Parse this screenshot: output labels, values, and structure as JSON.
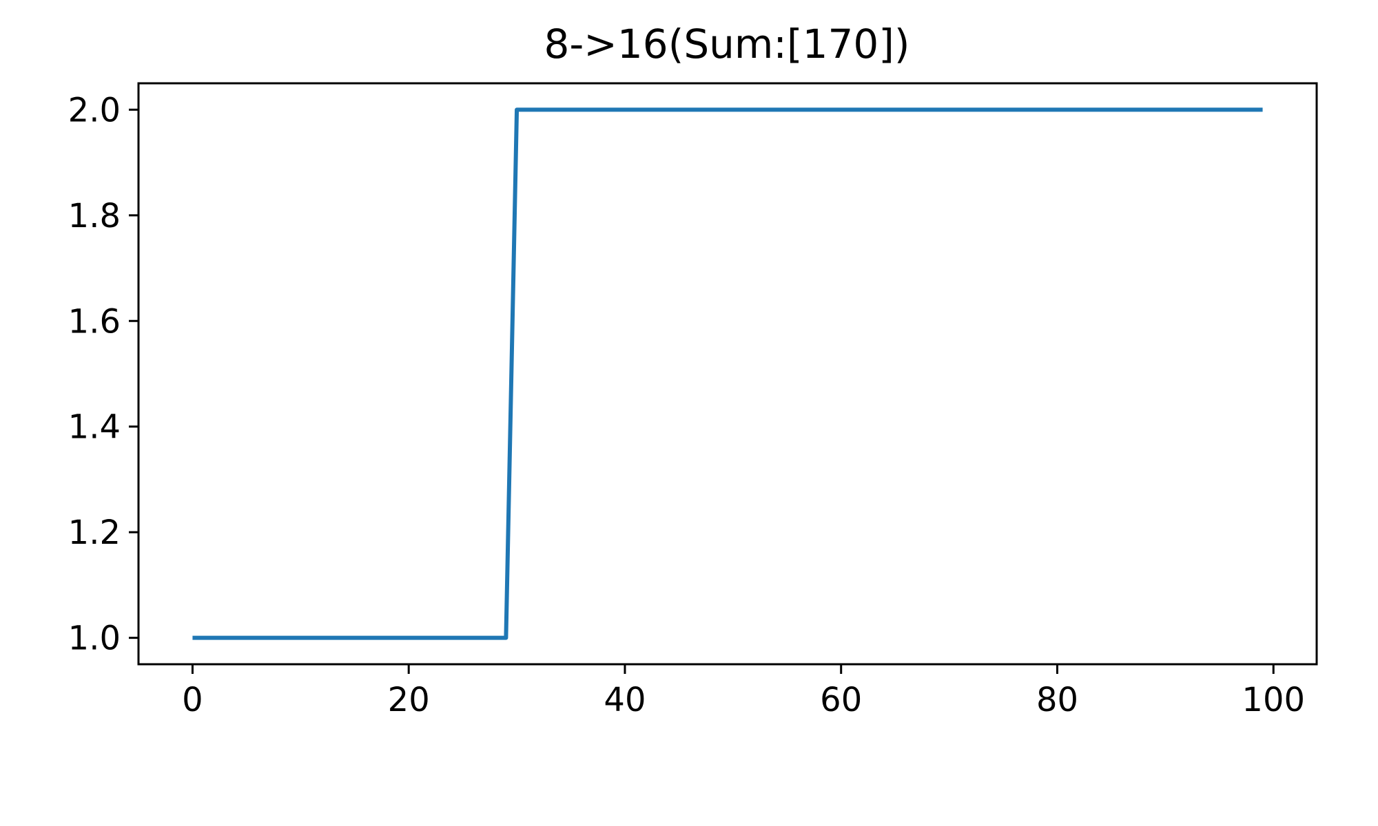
{
  "chart_data": {
    "type": "line",
    "title": "8->16(Sum:[170])",
    "xlabel": "",
    "ylabel": "",
    "xlim": [
      -5,
      104
    ],
    "ylim": [
      0.95,
      2.05
    ],
    "xticks": [
      0,
      20,
      40,
      60,
      80,
      100
    ],
    "yticks": [
      1.0,
      1.2,
      1.4,
      1.6,
      1.8,
      2.0
    ],
    "xtick_labels": [
      "0",
      "20",
      "40",
      "60",
      "80",
      "100"
    ],
    "ytick_labels": [
      "1.0",
      "1.2",
      "1.4",
      "1.6",
      "1.8",
      "2.0"
    ],
    "grid": false,
    "series": [
      {
        "color": "#1f77b4",
        "points": [
          [
            0,
            1.0
          ],
          [
            29,
            1.0
          ],
          [
            30,
            2.0
          ],
          [
            99,
            2.0
          ]
        ]
      }
    ]
  }
}
